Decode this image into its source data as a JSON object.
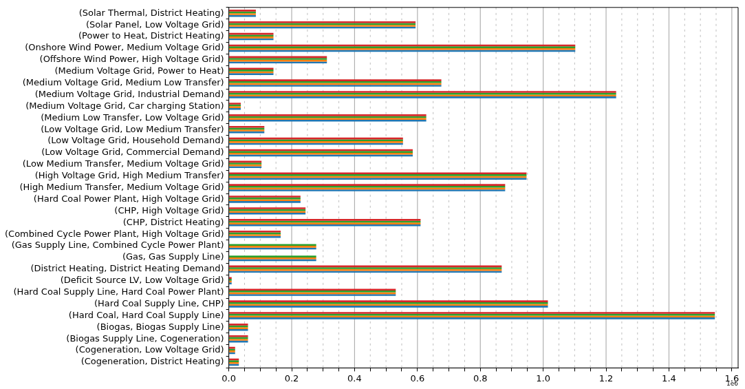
{
  "chart_data": {
    "type": "bar",
    "orientation": "horizontal",
    "categories": [
      "(Solar Thermal, District Heating)",
      "(Solar Panel, Low Voltage Grid)",
      "(Power to Heat, District Heating)",
      "(Onshore Wind Power, Medium Voltage Grid)",
      "(Offshore Wind Power, High Voltage Grid)",
      "(Medium Voltage Grid, Power to Heat)",
      "(Medium Voltage Grid, Medium Low Transfer)",
      "(Medium Voltage Grid, Industrial Demand)",
      "(Medium Voltage Grid, Car charging Station)",
      "(Medium Low Transfer, Low Voltage Grid)",
      "(Low Voltage Grid, Low Medium Transfer)",
      "(Low Voltage Grid, Household Demand)",
      "(Low Voltage Grid, Commercial Demand)",
      "(Low Medium Transfer, Medium Voltage Grid)",
      "(High Voltage Grid, High Medium Transfer)",
      "(High Medium Transfer, Medium Voltage Grid)",
      "(Hard Coal Power Plant, High Voltage Grid)",
      "(CHP, High Voltage Grid)",
      "(CHP, District Heating)",
      "(Combined Cycle Power Plant, High Voltage Grid)",
      "(Gas Supply Line, Combined Cycle Power Plant)",
      "(Gas, Gas Supply Line)",
      "(District Heating, District Heating Demand)",
      "(Deficit Source LV, Low Voltage Grid)",
      "(Hard Coal Supply Line, Hard Coal Power Plant)",
      "(Hard Coal Supply Line, CHP)",
      "(Hard Coal, Hard Coal Supply Line)",
      "(Biogas, Biogas Supply Line)",
      "(Biogas Supply Line, Cogeneration)",
      "(Cogeneration, Low Voltage Grid)",
      "(Cogeneration, District Heating)"
    ],
    "series": [
      {
        "color": "#d62728",
        "values": [
          0.086,
          0.594,
          0.142,
          1.102,
          0.312,
          0.142,
          0.676,
          1.232,
          0.038,
          0.628,
          0.113,
          0.554,
          0.585,
          0.104,
          0.947,
          0.879,
          0.228,
          0.244,
          0.61,
          0.165,
          null,
          null,
          0.868,
          0.009,
          0.531,
          1.015,
          1.546,
          0.061,
          0.061,
          0.02,
          0.032
        ]
      },
      {
        "color": "#2ca02c",
        "values": [
          0.086,
          0.594,
          0.142,
          1.102,
          0.312,
          0.142,
          0.676,
          1.232,
          0.038,
          0.628,
          0.113,
          0.554,
          0.585,
          0.104,
          0.947,
          0.879,
          0.228,
          0.244,
          0.61,
          0.165,
          0.278,
          0.278,
          0.868,
          0.009,
          0.531,
          1.015,
          1.546,
          0.061,
          0.061,
          0.02,
          0.032
        ]
      },
      {
        "color": "#ff7f0e",
        "values": [
          0.086,
          0.594,
          0.142,
          1.102,
          0.312,
          0.142,
          0.676,
          1.232,
          0.038,
          0.628,
          0.113,
          0.554,
          0.585,
          0.104,
          0.947,
          0.879,
          0.228,
          0.244,
          0.61,
          0.165,
          0.278,
          0.278,
          0.868,
          0.009,
          0.531,
          1.015,
          1.546,
          0.061,
          0.061,
          0.02,
          0.032
        ]
      },
      {
        "color": "#1f77b4",
        "values": [
          0.086,
          0.594,
          0.142,
          1.102,
          0.312,
          0.142,
          0.676,
          1.232,
          0.038,
          0.628,
          0.113,
          0.554,
          0.585,
          0.104,
          0.947,
          0.879,
          0.228,
          0.244,
          0.61,
          0.165,
          0.278,
          0.278,
          0.868,
          0.009,
          0.531,
          1.015,
          1.546,
          0.061,
          0.061,
          0.02,
          0.032
        ]
      }
    ],
    "xlim": [
      0,
      1.62
    ],
    "xticks": [
      {
        "value": 0,
        "label": "0.0"
      },
      {
        "value": 0.05,
        "label": null
      },
      {
        "value": 0.1,
        "label": null
      },
      {
        "value": 0.15,
        "label": null
      },
      {
        "value": 0.2,
        "label": "0.2"
      },
      {
        "value": 0.25,
        "label": null
      },
      {
        "value": 0.3,
        "label": null
      },
      {
        "value": 0.35,
        "label": null
      },
      {
        "value": 0.4,
        "label": "0.4"
      },
      {
        "value": 0.45,
        "label": null
      },
      {
        "value": 0.5,
        "label": null
      },
      {
        "value": 0.55,
        "label": null
      },
      {
        "value": 0.6,
        "label": "0.6"
      },
      {
        "value": 0.65,
        "label": null
      },
      {
        "value": 0.7,
        "label": null
      },
      {
        "value": 0.75,
        "label": null
      },
      {
        "value": 0.8,
        "label": "0.8"
      },
      {
        "value": 0.85,
        "label": null
      },
      {
        "value": 0.9,
        "label": null
      },
      {
        "value": 0.95,
        "label": null
      },
      {
        "value": 1,
        "label": "1.0"
      },
      {
        "value": 1.05,
        "label": null
      },
      {
        "value": 1.1,
        "label": null
      },
      {
        "value": 1.15,
        "label": null
      },
      {
        "value": 1.2,
        "label": "1.2"
      },
      {
        "value": 1.25,
        "label": null
      },
      {
        "value": 1.3,
        "label": null
      },
      {
        "value": 1.35,
        "label": null
      },
      {
        "value": 1.4,
        "label": "1.4"
      },
      {
        "value": 1.45,
        "label": null
      },
      {
        "value": 1.5,
        "label": null
      },
      {
        "value": 1.55,
        "label": null
      },
      {
        "value": 1.6,
        "label": "1.6"
      }
    ],
    "grid": "x",
    "annotations": [
      "1e6"
    ]
  }
}
